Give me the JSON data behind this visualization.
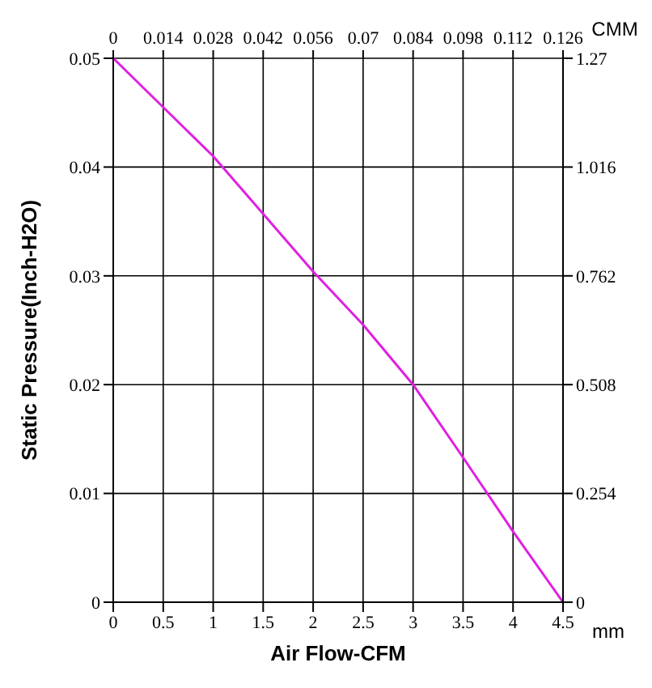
{
  "chart_data": {
    "type": "line",
    "xlabel": "Air Flow-CFM",
    "ylabel": "Static Pressure(Inch-H2O)",
    "x2label": "CMM",
    "y2label": "mm",
    "x": [
      0,
      0.5,
      1,
      1.5,
      2,
      2.5,
      3,
      3.5,
      4,
      4.5
    ],
    "series": [
      {
        "color": "#e020e0",
        "values": [
          0.05,
          0.0455,
          0.041,
          0.0357,
          0.0304,
          0.0255,
          0.02,
          0.0133,
          0.0065,
          0
        ]
      }
    ],
    "xlim": [
      0,
      4.5
    ],
    "xticks": [
      0,
      0.5,
      1,
      1.5,
      2,
      2.5,
      3,
      3.5,
      4,
      4.5
    ],
    "x2lim": [
      0,
      0.126
    ],
    "x2ticks": [
      0,
      0.014,
      0.028,
      0.042,
      0.056,
      0.07,
      0.084,
      0.098,
      0.112,
      0.126
    ],
    "ylim": [
      0,
      0.05
    ],
    "yticks": [
      0,
      0.01,
      0.02,
      0.03,
      0.04,
      0.05
    ],
    "y2lim": [
      0,
      1.27
    ],
    "y2ticks": [
      0,
      0.254,
      0.508,
      0.762,
      1.016,
      1.27
    ],
    "grid": true,
    "legend": false,
    "marker": "none",
    "line_style": "solid"
  }
}
